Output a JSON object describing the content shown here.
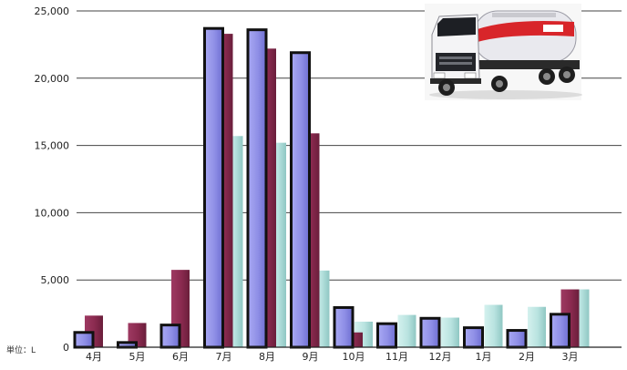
{
  "chart_data": {
    "type": "bar",
    "title": "",
    "xlabel": "",
    "ylabel": "",
    "unit_label": "単位：L",
    "ylim": [
      0,
      25000
    ],
    "yticks": [
      "0",
      "5,000",
      "10,000",
      "15,000",
      "20,000",
      "25,000"
    ],
    "ytick_values": [
      0,
      5000,
      10000,
      15000,
      20000,
      25000
    ],
    "grid": true,
    "categories": [
      "4月",
      "5月",
      "6月",
      "7月",
      "8月",
      "9月",
      "10月",
      "11月",
      "12月",
      "1月",
      "2月",
      "3月"
    ],
    "series": [
      {
        "color": "#8f8fe6",
        "outline": "#111111",
        "values": [
          1100,
          350,
          1650,
          23700,
          23600,
          21900,
          2950,
          1750,
          2150,
          1450,
          1250,
          2450
        ]
      },
      {
        "color": "#8a2a4f",
        "outline": null,
        "values": [
          2350,
          1800,
          5750,
          23300,
          22200,
          15900,
          1100,
          0,
          0,
          0,
          0,
          4300
        ]
      },
      {
        "color": "#b9e3e0",
        "outline": null,
        "values": [
          0,
          0,
          0,
          15700,
          15200,
          5700,
          1900,
          2400,
          2200,
          3150,
          3000,
          4300
        ]
      }
    ],
    "legend": "none",
    "icons": [
      "tanker-truck-icon"
    ]
  }
}
